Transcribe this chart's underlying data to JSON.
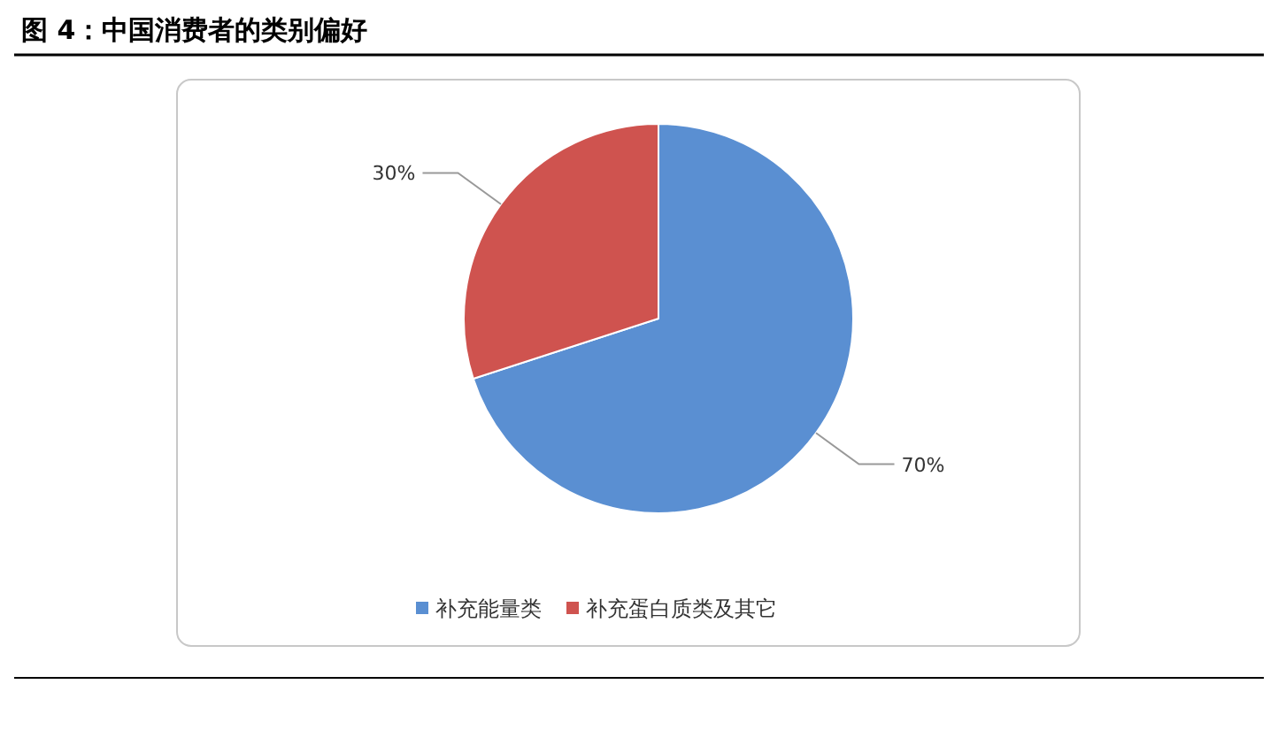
{
  "chart_data": {
    "type": "pie",
    "title": "图 4：中国消费者的类别偏好",
    "categories": [
      "补充能量类",
      "补充蛋白质类及其它"
    ],
    "values": [
      70,
      30
    ],
    "colors": [
      "#5a8fd2",
      "#cf534f"
    ],
    "value_labels": [
      "70%",
      "30%"
    ],
    "legend": "bottom"
  }
}
